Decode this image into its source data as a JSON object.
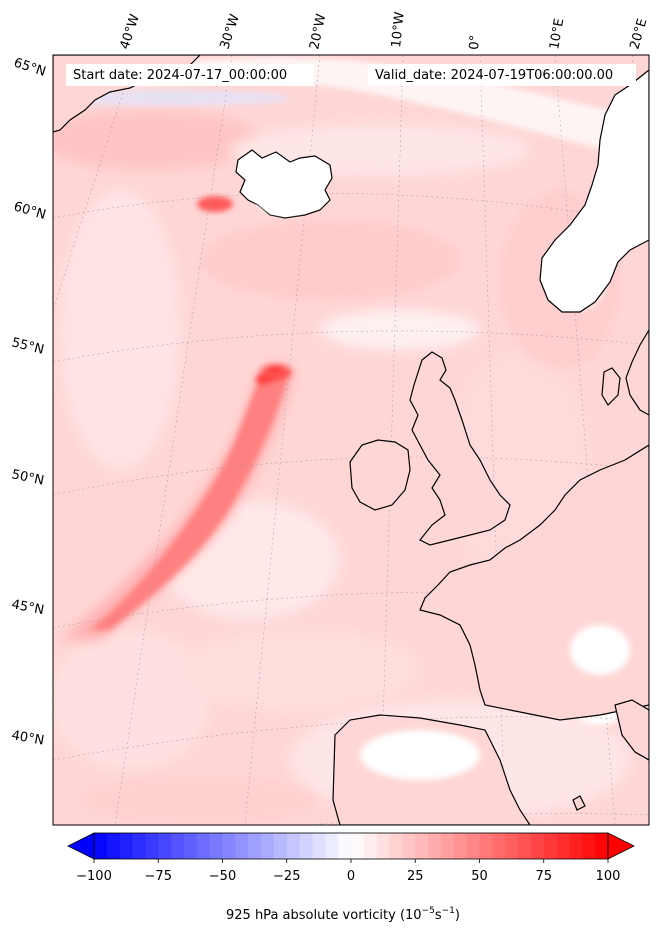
{
  "header": {
    "start_label": "Start date: 2024-07-17_00:00:00",
    "valid_label": "Valid_date: 2024-07-19T06:00:00.00"
  },
  "map": {
    "projection": "conic",
    "lon_labels": [
      "40°W",
      "30°W",
      "20°W",
      "10°W",
      "0°",
      "10°E",
      "20°E"
    ],
    "lat_labels": [
      "65°N",
      "60°N",
      "55°N",
      "50°N",
      "45°N",
      "40°N"
    ],
    "gridlines": true,
    "coastline_color": "#000000",
    "field": "925 hPa absolute vorticity",
    "colormap": "bwr"
  },
  "colorbar": {
    "ticks": [
      "−100",
      "−75",
      "−50",
      "−25",
      "0",
      "25",
      "50",
      "75",
      "100"
    ],
    "range": [
      -100,
      100
    ],
    "extend": "both",
    "low_color": "#0000ff",
    "mid_color": "#ffffff",
    "high_color": "#ff0000",
    "label_text": "925 hPa absolute vorticity (",
    "label_unit_base": "10",
    "label_exp1": "−5",
    "label_unit_mid": "s",
    "label_exp2": "−1",
    "label_close": ")"
  }
}
